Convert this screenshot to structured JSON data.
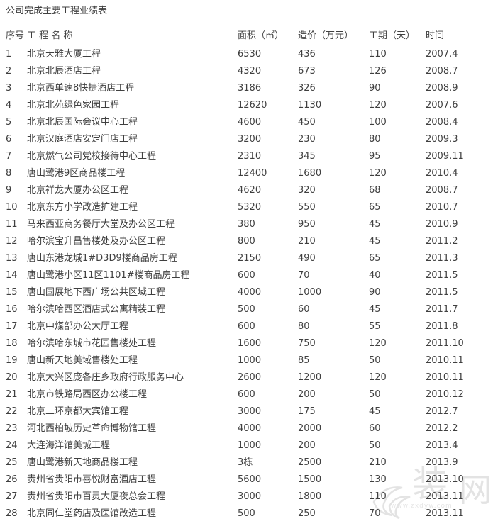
{
  "page_title": "公司完成主要工程业绩表",
  "table": {
    "columns": [
      "序号",
      "工 程 名 称",
      "面积（㎡）",
      "造价（万元）",
      "工期（天）",
      "时间"
    ],
    "rows": [
      [
        "1",
        "北京天雅大厦工程",
        "6530",
        "436",
        "110",
        "2007.4"
      ],
      [
        "2",
        "北京北辰酒店工程",
        "4320",
        "673",
        "126",
        "2008.7"
      ],
      [
        "3",
        "北京西单速8快捷酒店工程",
        "3186",
        "326",
        "90",
        "2008.9"
      ],
      [
        "4",
        "北京北苑绿色家园工程",
        "12620",
        "1130",
        "120",
        "2007.6"
      ],
      [
        "5",
        "北京北辰国际会议中心工程",
        "4600",
        "450",
        "100",
        "2008.4"
      ],
      [
        "6",
        "北京汉庭酒店安定门店工程",
        "3200",
        "230",
        "80",
        "2009.3"
      ],
      [
        "7",
        "北京燃气公司党校接待中心工程",
        "2310",
        "345",
        "95",
        "2009.11"
      ],
      [
        "8",
        "唐山鹭港9区商品楼工程",
        "12400",
        "1680",
        "120",
        "2010.4"
      ],
      [
        "9",
        "北京祥龙大厦办公区工程",
        "4620",
        "320",
        "68",
        "2008.7"
      ],
      [
        "10",
        "北京东方小学改造扩建工程",
        "5320",
        "550",
        "65",
        "2010.7"
      ],
      [
        "11",
        "马来西亚商务餐厅大堂及办公区工程",
        "380",
        "950",
        "45",
        "2010.9"
      ],
      [
        "12",
        "哈尔滨宝升昌售楼处及办公区工程",
        "800",
        "210",
        "45",
        "2011.2"
      ],
      [
        "13",
        "唐山东港龙城1#D3D9楼商品房工程",
        "2150",
        "490",
        "65",
        "2011.3"
      ],
      [
        "14",
        "唐山鹭港小区11区1101#楼商品房工程",
        "600",
        "70",
        "40",
        "2011.5"
      ],
      [
        "15",
        "唐山国展地下西广场公共区域工程",
        "4000",
        "1000",
        "90",
        "2011.5"
      ],
      [
        "16",
        "哈尔滨哈西区酒店式公寓精装工程",
        "500",
        "60",
        "45",
        "2011.7"
      ],
      [
        "17",
        "北京中煤部办公大厅工程",
        "600",
        "80",
        "55",
        "2011.8"
      ],
      [
        "18",
        "哈尔滨哈东城市花园售楼处工程",
        "1600",
        "750",
        "120",
        "2011.10"
      ],
      [
        "19",
        "唐山新天地美域售楼处工程",
        "1000",
        "85",
        "50",
        "2010.11"
      ],
      [
        "20",
        "北京大兴区庞各庄乡政府行政服务中心",
        "2600",
        "1200",
        "120",
        "2010.11"
      ],
      [
        "21",
        "北京市铁路局西区办公楼工程",
        "600",
        "200",
        "50",
        "2010.12"
      ],
      [
        "22",
        "北京二环京都大宾馆工程",
        "3000",
        "175",
        "45",
        "2012.7"
      ],
      [
        "23",
        "河北西柏坡历史革命博物馆工程",
        "4000",
        "2000",
        "60",
        "2012.2"
      ],
      [
        "24",
        "大连海洋馆美城工程",
        "1000",
        "200",
        "50",
        "2013.4"
      ],
      [
        "25",
        "唐山鹭港新天地商品楼工程",
        "3栋",
        "2500",
        "210",
        "2013.9"
      ],
      [
        "26",
        "贵州省贵阳市喜悦财富酒店工程",
        "5600",
        "1500",
        "130",
        "2013.10"
      ],
      [
        "27",
        "贵州省贵阳市百灵大厦夜总会工程",
        "3000",
        "1800",
        "110",
        "2013.11"
      ],
      [
        "28",
        "北京同仁堂药店及医馆改造工程",
        "500",
        "250",
        "70",
        "2013.11"
      ]
    ]
  },
  "watermark": {
    "char_left": "装",
    "char_right": "网",
    "site_url": "www.zxdyw.com",
    "color": "#e3e3e3"
  },
  "colors": {
    "text": "#3f3f3f",
    "background": "#ffffff"
  }
}
